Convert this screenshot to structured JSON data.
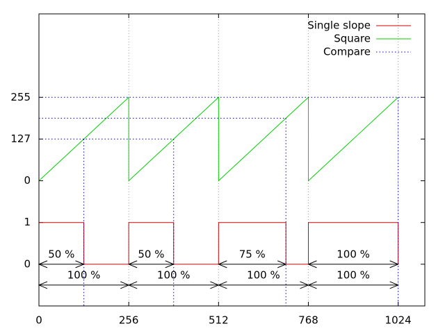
{
  "chart_data": {
    "type": "line",
    "xlim": [
      0,
      1100
    ],
    "ylim": [
      -1,
      6
    ],
    "xticks": [
      0,
      256,
      512,
      768,
      1024
    ],
    "yticks": [
      {
        "value": 0,
        "label": "0"
      },
      {
        "value": 1,
        "label": "1"
      },
      {
        "value": 2,
        "label": "0"
      },
      {
        "value": 3,
        "label": "127"
      },
      {
        "value": 4,
        "label": "255"
      }
    ],
    "grid": "x",
    "legend": "top-right",
    "series": [
      {
        "name": "Single slope",
        "color": "#d00000",
        "style": "solid",
        "x": [
          0,
          128,
          128,
          256,
          256,
          384,
          384,
          512,
          512,
          704,
          704,
          768,
          768,
          1024,
          1024
        ],
        "values": [
          1,
          1,
          0,
          0,
          1,
          1,
          0,
          0,
          1,
          1,
          0,
          0,
          1,
          1,
          0
        ]
      },
      {
        "name": "Square",
        "color": "#00d000",
        "style": "solid",
        "x": [
          0,
          256,
          256,
          512,
          512,
          768,
          768,
          1024
        ],
        "values": [
          2,
          4,
          2,
          4,
          2,
          4,
          2,
          4
        ]
      },
      {
        "name": "Compare",
        "color": "#0000cc",
        "style": "dotted",
        "x": [
          0,
          384,
          null,
          128,
          128,
          null,
          384,
          384,
          null,
          0,
          704,
          null,
          704,
          704,
          null,
          0,
          1100,
          null,
          1024,
          1024
        ],
        "values": [
          3,
          3,
          null,
          3,
          -1,
          null,
          3,
          -1,
          null,
          3.5,
          3.5,
          null,
          3.5,
          -1,
          null,
          4,
          4,
          null,
          4,
          -1
        ]
      }
    ],
    "annotations": [
      {
        "text": "50 %",
        "x1": 0,
        "x2": 128,
        "y": 0
      },
      {
        "text": "50 %",
        "x1": 256,
        "x2": 384,
        "y": 0
      },
      {
        "text": "75 %",
        "x1": 512,
        "x2": 704,
        "y": 0
      },
      {
        "text": "100 %",
        "x1": 768,
        "x2": 1024,
        "y": 0
      },
      {
        "text": "100 %",
        "x1": 0,
        "x2": 256,
        "y": -0.5
      },
      {
        "text": "100 %",
        "x1": 256,
        "x2": 512,
        "y": -0.5
      },
      {
        "text": "100 %",
        "x1": 512,
        "x2": 768,
        "y": -0.5
      },
      {
        "text": "100 %",
        "x1": 768,
        "x2": 1024,
        "y": -0.5
      }
    ]
  }
}
